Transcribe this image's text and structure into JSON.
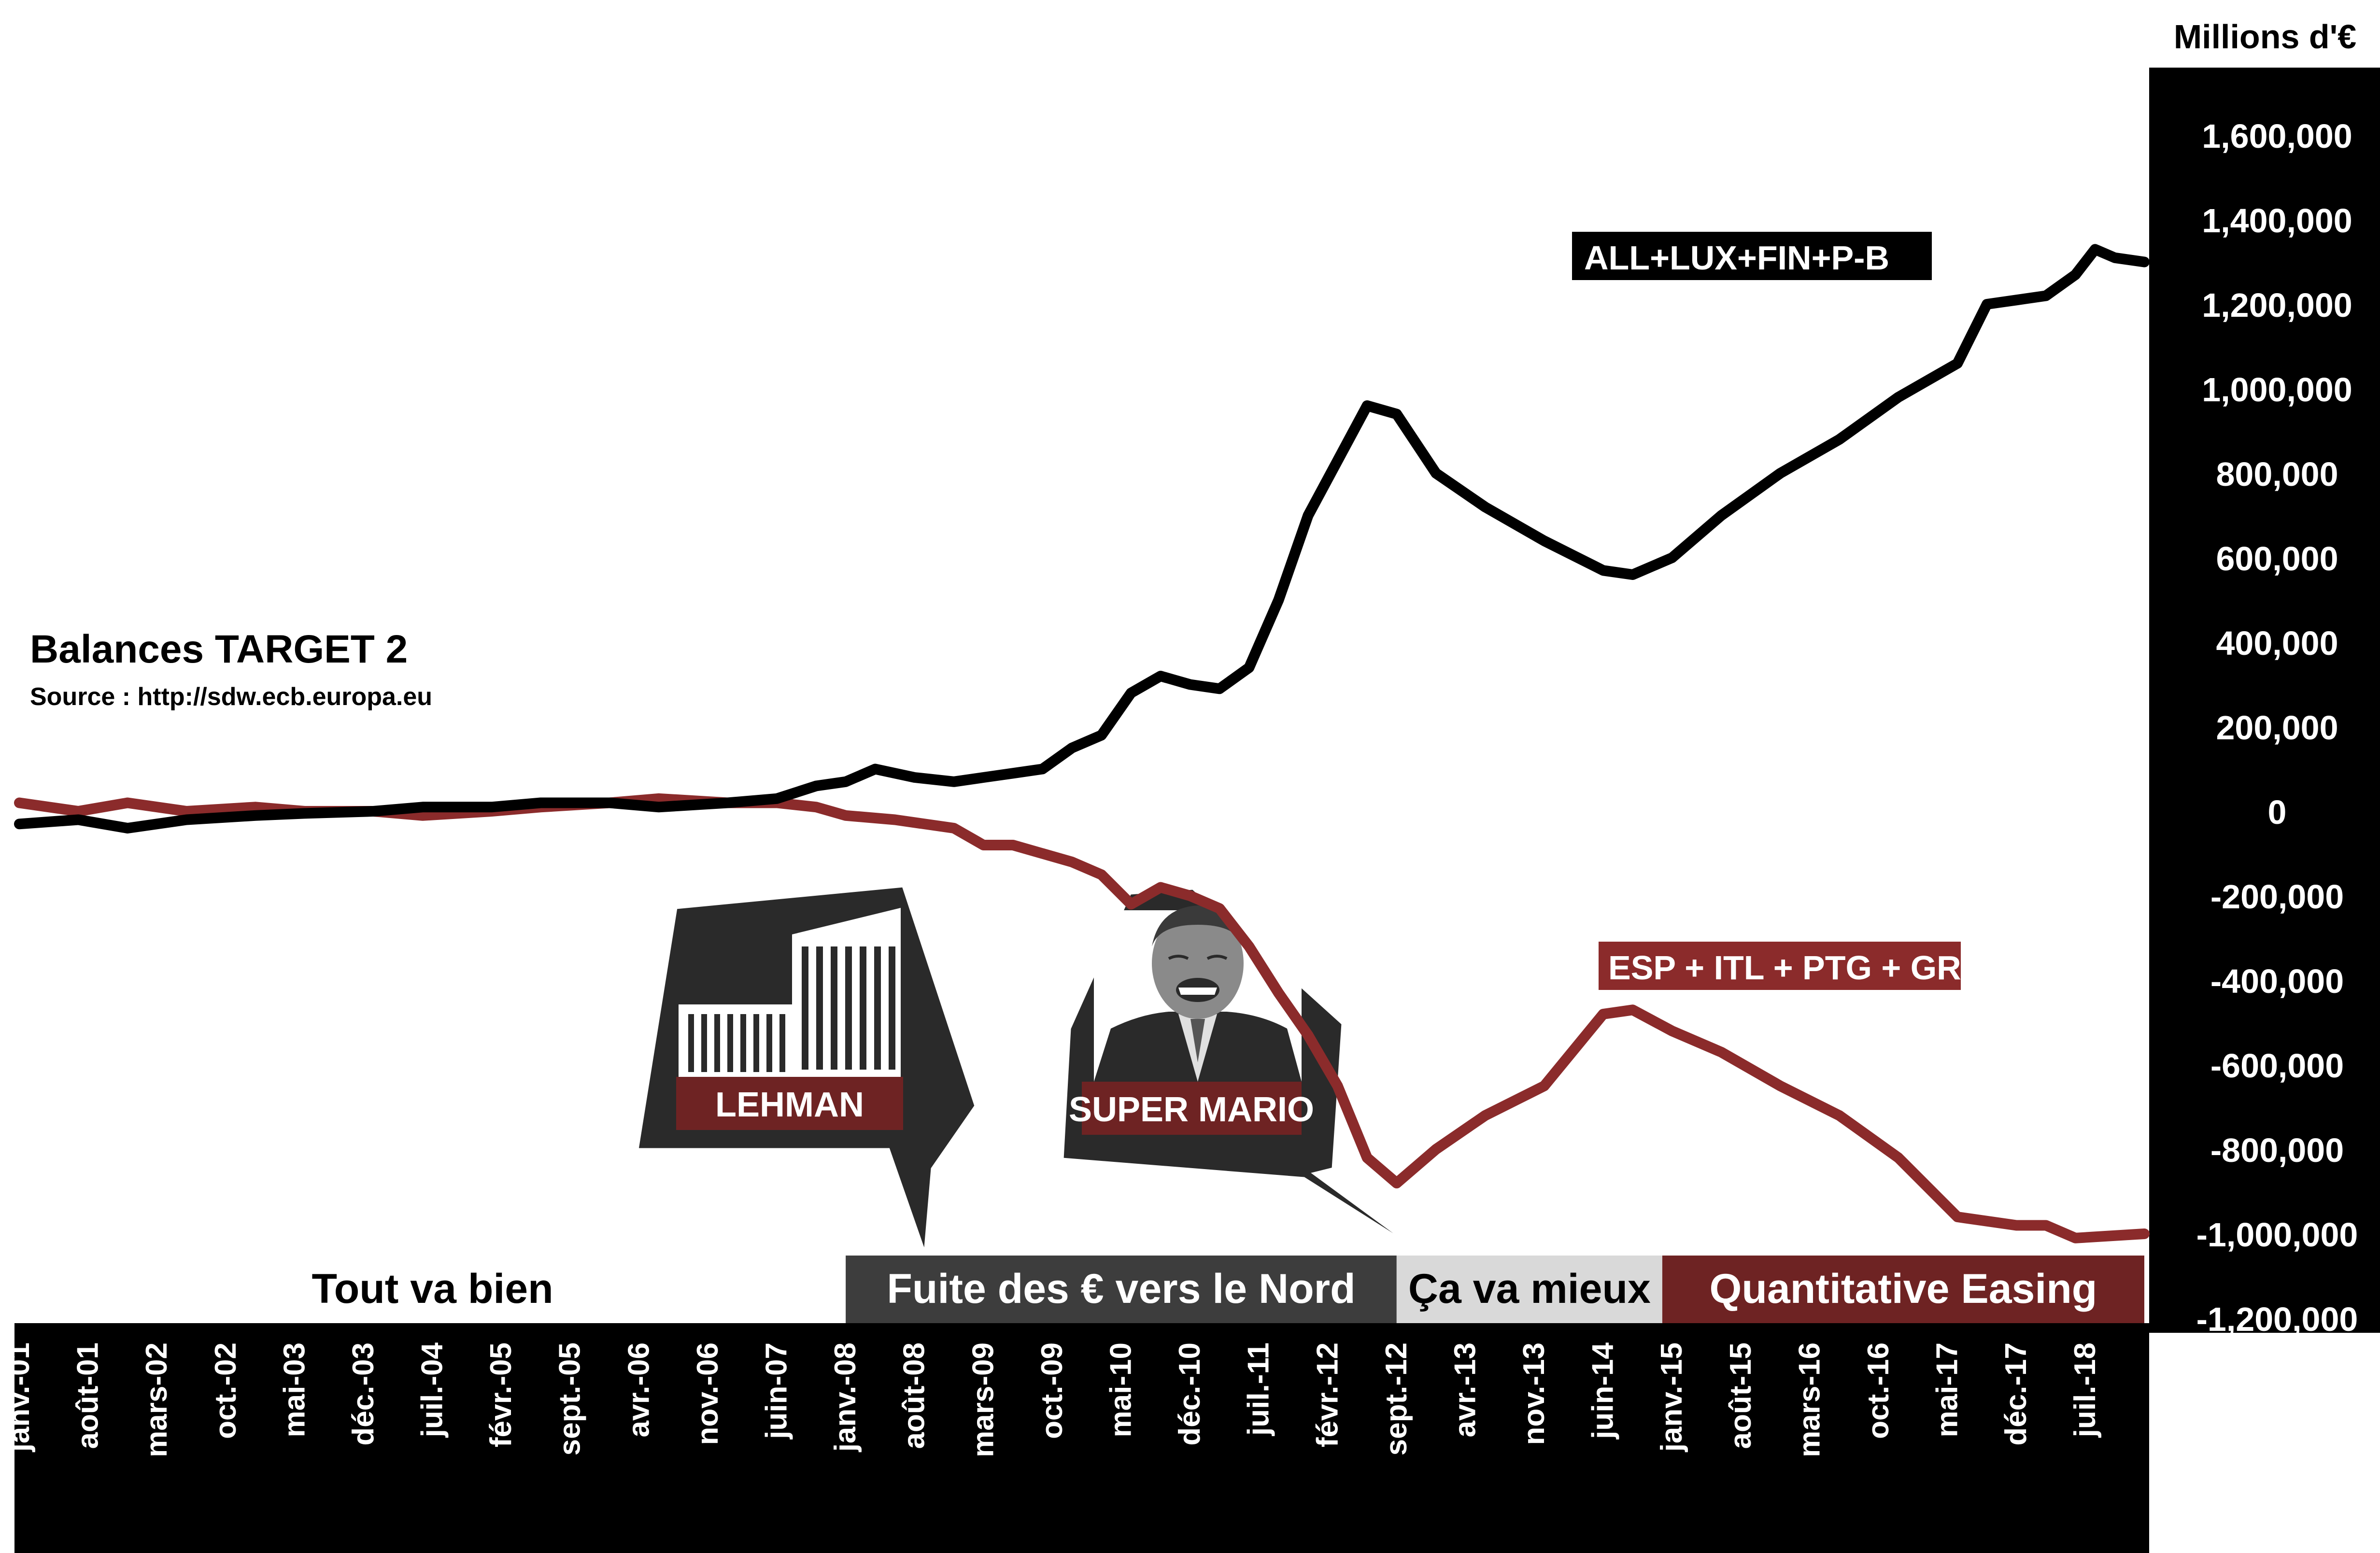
{
  "chart_data": {
    "type": "line",
    "title": "Balances TARGET 2",
    "subtitle": "Source : http://sdw.ecb.europa.eu",
    "ylabel": "Millions d'€",
    "ylim": [
      -1200000,
      1600000
    ],
    "yticks": [
      1600000,
      1400000,
      1200000,
      1000000,
      800000,
      600000,
      400000,
      200000,
      0,
      -200000,
      -400000,
      -600000,
      -800000,
      -1000000,
      -1200000
    ],
    "ytick_labels": [
      "1,600,000",
      "1,400,000",
      "1,200,000",
      "1,000,000",
      "800,000",
      "600,000",
      "400,000",
      "200,000",
      "0",
      "-200,000",
      "-400,000",
      "-600,000",
      "-800,000",
      "-1,000,000",
      "-1,200,000"
    ],
    "x_start": "2001-01",
    "x_end": "2019-01",
    "xtick_dates": [
      "2001-01",
      "2001-08",
      "2002-03",
      "2002-10",
      "2003-05",
      "2003-12",
      "2004-07",
      "2005-02",
      "2005-09",
      "2006-04",
      "2006-11",
      "2007-06",
      "2008-01",
      "2008-08",
      "2009-03",
      "2009-10",
      "2010-05",
      "2010-12",
      "2011-07",
      "2012-02",
      "2012-09",
      "2013-04",
      "2013-11",
      "2014-06",
      "2015-01",
      "2015-08",
      "2016-03",
      "2016-10",
      "2017-05",
      "2017-12",
      "2018-07"
    ],
    "xtick_labels": [
      "janv.-01",
      "août-01",
      "mars-02",
      "oct.-02",
      "mai-03",
      "déc.-03",
      "juil.-04",
      "févr.-05",
      "sept.-05",
      "avr.-06",
      "nov.-06",
      "juin-07",
      "janv.-08",
      "août-08",
      "mars-09",
      "oct.-09",
      "mai-10",
      "déc.-10",
      "juil.-11",
      "févr.-12",
      "sept.-12",
      "avr.-13",
      "nov.-13",
      "juin-14",
      "janv.-15",
      "août-15",
      "mars-16",
      "oct.-16",
      "mai-17",
      "déc.-17",
      "juil.-18"
    ],
    "series": [
      {
        "name": "ALL+LUX+FIN+P-B",
        "color": "#000000",
        "points": [
          [
            "2001-01",
            -30000
          ],
          [
            "2001-07",
            -20000
          ],
          [
            "2001-12",
            -40000
          ],
          [
            "2002-06",
            -20000
          ],
          [
            "2003-01",
            -10000
          ],
          [
            "2003-06",
            -5000
          ],
          [
            "2004-01",
            0
          ],
          [
            "2004-06",
            10000
          ],
          [
            "2005-01",
            10000
          ],
          [
            "2005-06",
            20000
          ],
          [
            "2006-01",
            20000
          ],
          [
            "2006-06",
            10000
          ],
          [
            "2007-01",
            20000
          ],
          [
            "2007-06",
            30000
          ],
          [
            "2007-10",
            60000
          ],
          [
            "2008-01",
            70000
          ],
          [
            "2008-04",
            100000
          ],
          [
            "2008-08",
            80000
          ],
          [
            "2008-12",
            70000
          ],
          [
            "2009-03",
            80000
          ],
          [
            "2009-06",
            90000
          ],
          [
            "2009-09",
            100000
          ],
          [
            "2009-12",
            150000
          ],
          [
            "2010-03",
            180000
          ],
          [
            "2010-06",
            280000
          ],
          [
            "2010-09",
            320000
          ],
          [
            "2010-12",
            300000
          ],
          [
            "2011-03",
            290000
          ],
          [
            "2011-06",
            340000
          ],
          [
            "2011-09",
            500000
          ],
          [
            "2011-12",
            700000
          ],
          [
            "2012-03",
            830000
          ],
          [
            "2012-06",
            960000
          ],
          [
            "2012-09",
            940000
          ],
          [
            "2013-01",
            800000
          ],
          [
            "2013-06",
            720000
          ],
          [
            "2013-12",
            640000
          ],
          [
            "2014-06",
            570000
          ],
          [
            "2014-09",
            560000
          ],
          [
            "2015-01",
            600000
          ],
          [
            "2015-06",
            700000
          ],
          [
            "2015-12",
            800000
          ],
          [
            "2016-06",
            880000
          ],
          [
            "2016-12",
            980000
          ],
          [
            "2017-06",
            1060000
          ],
          [
            "2017-09",
            1200000
          ],
          [
            "2017-12",
            1210000
          ],
          [
            "2018-03",
            1220000
          ],
          [
            "2018-06",
            1270000
          ],
          [
            "2018-08",
            1330000
          ],
          [
            "2018-10",
            1310000
          ],
          [
            "2019-01",
            1300000
          ]
        ]
      },
      {
        "name": "ESP + ITL + PTG + GRE",
        "color": "#8b2b2b",
        "points": [
          [
            "2001-01",
            20000
          ],
          [
            "2001-07",
            0
          ],
          [
            "2001-12",
            20000
          ],
          [
            "2002-06",
            0
          ],
          [
            "2003-01",
            10000
          ],
          [
            "2003-06",
            0
          ],
          [
            "2004-01",
            0
          ],
          [
            "2004-06",
            -10000
          ],
          [
            "2005-01",
            0
          ],
          [
            "2005-06",
            10000
          ],
          [
            "2006-01",
            20000
          ],
          [
            "2006-06",
            30000
          ],
          [
            "2007-01",
            20000
          ],
          [
            "2007-06",
            20000
          ],
          [
            "2007-10",
            10000
          ],
          [
            "2008-01",
            -10000
          ],
          [
            "2008-06",
            -20000
          ],
          [
            "2008-12",
            -40000
          ],
          [
            "2009-03",
            -80000
          ],
          [
            "2009-06",
            -80000
          ],
          [
            "2009-09",
            -100000
          ],
          [
            "2009-12",
            -120000
          ],
          [
            "2010-03",
            -150000
          ],
          [
            "2010-06",
            -220000
          ],
          [
            "2010-09",
            -180000
          ],
          [
            "2010-12",
            -200000
          ],
          [
            "2011-03",
            -230000
          ],
          [
            "2011-06",
            -320000
          ],
          [
            "2011-09",
            -430000
          ],
          [
            "2011-12",
            -530000
          ],
          [
            "2012-03",
            -650000
          ],
          [
            "2012-06",
            -820000
          ],
          [
            "2012-09",
            -880000
          ],
          [
            "2013-01",
            -800000
          ],
          [
            "2013-06",
            -720000
          ],
          [
            "2013-12",
            -650000
          ],
          [
            "2014-06",
            -480000
          ],
          [
            "2014-09",
            -470000
          ],
          [
            "2015-01",
            -520000
          ],
          [
            "2015-06",
            -570000
          ],
          [
            "2015-12",
            -650000
          ],
          [
            "2016-06",
            -720000
          ],
          [
            "2016-12",
            -820000
          ],
          [
            "2017-06",
            -960000
          ],
          [
            "2017-12",
            -980000
          ],
          [
            "2018-03",
            -980000
          ],
          [
            "2018-06",
            -1010000
          ],
          [
            "2019-01",
            -1000000
          ]
        ]
      }
    ],
    "periods": [
      {
        "label": "Tout va bien",
        "start": "2001-01",
        "end": "2008-01",
        "bg": "#ffffff",
        "fg": "#000000"
      },
      {
        "label": "Fuite des € vers le Nord",
        "start": "2008-01",
        "end": "2012-09",
        "bg": "#3d3d3d",
        "fg": "#ffffff"
      },
      {
        "label": "Ça va mieux",
        "start": "2012-09",
        "end": "2014-12",
        "bg": "#d9d9d9",
        "fg": "#000000"
      },
      {
        "label": "Quantitative Easing",
        "start": "2014-12",
        "end": "2019-01",
        "bg": "#6e2323",
        "fg": "#ffffff"
      }
    ],
    "annotations": [
      {
        "text": "LEHMAN",
        "date": "2008-09"
      },
      {
        "text": "SUPER MARIO",
        "date": "2012-07"
      }
    ],
    "grid": false,
    "legend": "inline labels"
  }
}
